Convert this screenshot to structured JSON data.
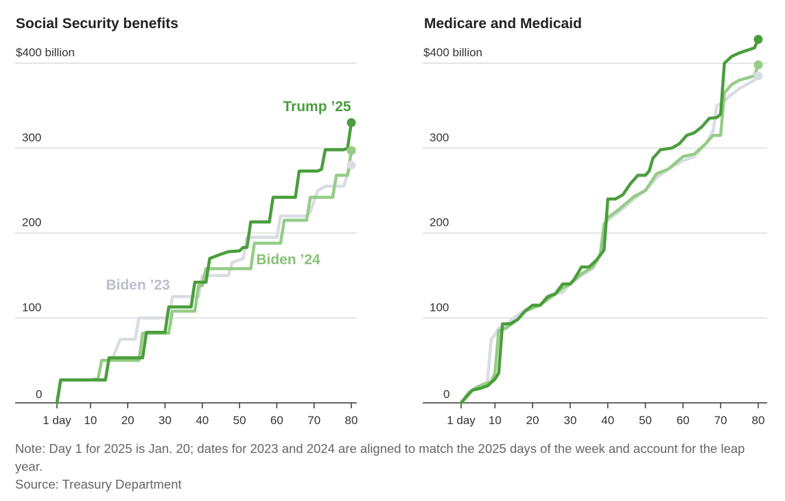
{
  "chart_data": [
    {
      "type": "line",
      "title": "Social Security benefits",
      "y_unit_label": "$400 billion",
      "x_ticks": [
        1,
        10,
        20,
        30,
        40,
        50,
        60,
        70,
        80
      ],
      "x_tick_labels": [
        "1 day",
        "10",
        "20",
        "30",
        "40",
        "50",
        "60",
        "70",
        "80"
      ],
      "y_ticks": [
        0,
        100,
        200,
        300,
        400
      ],
      "y_tick_labels": [
        "0",
        "100",
        "200",
        "300",
        "$400 billion"
      ],
      "xlim": [
        -3,
        81
      ],
      "ylim": [
        0,
        400
      ],
      "grid": true,
      "series": [
        {
          "name": "Biden ’23",
          "color": "#d9dde3",
          "label_color": "#b9bfcc",
          "points": [
            [
              1,
              0
            ],
            [
              2,
              27
            ],
            [
              11,
              27
            ],
            [
              12,
              27
            ],
            [
              14,
              27
            ],
            [
              15,
              53
            ],
            [
              16,
              53
            ],
            [
              18,
              75
            ],
            [
              22,
              75
            ],
            [
              23,
              100
            ],
            [
              31,
              100
            ],
            [
              32,
              125
            ],
            [
              39,
              125
            ],
            [
              40,
              150
            ],
            [
              47,
              150
            ],
            [
              48,
              165
            ],
            [
              51,
              170
            ],
            [
              52,
              195
            ],
            [
              60,
              195
            ],
            [
              61,
              220
            ],
            [
              68,
              220
            ],
            [
              69,
              225
            ],
            [
              71,
              250
            ],
            [
              73,
              255
            ],
            [
              78,
              255
            ],
            [
              79,
              270
            ],
            [
              80,
              280
            ]
          ]
        },
        {
          "name": "Biden ’24",
          "color": "#95cc86",
          "label_color": "#86c377",
          "points": [
            [
              1,
              0
            ],
            [
              2,
              27
            ],
            [
              10,
              27
            ],
            [
              11,
              28
            ],
            [
              12,
              28
            ],
            [
              13,
              50
            ],
            [
              23,
              50
            ],
            [
              24,
              82
            ],
            [
              31,
              82
            ],
            [
              32,
              108
            ],
            [
              38,
              108
            ],
            [
              39,
              138
            ],
            [
              40,
              138
            ],
            [
              41,
              158
            ],
            [
              53,
              158
            ],
            [
              54,
              188
            ],
            [
              61,
              188
            ],
            [
              62,
              215
            ],
            [
              68,
              215
            ],
            [
              69,
              242
            ],
            [
              75,
              242
            ],
            [
              76,
              268
            ],
            [
              79,
              268
            ],
            [
              80,
              297
            ]
          ]
        },
        {
          "name": "Trump ’25",
          "color": "#4a9e3c",
          "label_color": "#4a9e3c",
          "points": [
            [
              1,
              0
            ],
            [
              2,
              27
            ],
            [
              14,
              27
            ],
            [
              15,
              53
            ],
            [
              24,
              53
            ],
            [
              25,
              83
            ],
            [
              30,
              83
            ],
            [
              31,
              113
            ],
            [
              37,
              113
            ],
            [
              38,
              142
            ],
            [
              41,
              142
            ],
            [
              42,
              170
            ],
            [
              45,
              175
            ],
            [
              47,
              178
            ],
            [
              50,
              179
            ],
            [
              51,
              183
            ],
            [
              52,
              183
            ],
            [
              53,
              213
            ],
            [
              58,
              213
            ],
            [
              59,
              242
            ],
            [
              65,
              242
            ],
            [
              66,
              273
            ],
            [
              71,
              273
            ],
            [
              72,
              275
            ],
            [
              73,
              298
            ],
            [
              78,
              298
            ],
            [
              79,
              300
            ],
            [
              80,
              330
            ]
          ]
        }
      ],
      "labels": [
        {
          "series": "Trump ’25",
          "text": "Trump ’25"
        },
        {
          "series": "Biden ’24",
          "text": "Biden ’24"
        },
        {
          "series": "Biden ’23",
          "text": "Biden ’23"
        }
      ]
    },
    {
      "type": "line",
      "title": "Medicare and Medicaid",
      "y_unit_label": "$400 billion",
      "x_ticks": [
        1,
        10,
        20,
        30,
        40,
        50,
        60,
        70,
        80
      ],
      "x_tick_labels": [
        "1 day",
        "10",
        "20",
        "30",
        "40",
        "50",
        "60",
        "70",
        "80"
      ],
      "y_ticks": [
        0,
        100,
        200,
        300,
        400
      ],
      "y_tick_labels": [
        "0",
        "100",
        "200",
        "300",
        "$400 billion"
      ],
      "xlim": [
        -3,
        81
      ],
      "ylim": [
        0,
        400
      ],
      "grid": true,
      "series": [
        {
          "name": "Biden ’23",
          "color": "#d9dde3",
          "points": [
            [
              1,
              0
            ],
            [
              3,
              10
            ],
            [
              5,
              18
            ],
            [
              7,
              20
            ],
            [
              8,
              25
            ],
            [
              9,
              75
            ],
            [
              10,
              80
            ],
            [
              11,
              88
            ],
            [
              13,
              92
            ],
            [
              15,
              100
            ],
            [
              18,
              110
            ],
            [
              22,
              115
            ],
            [
              25,
              128
            ],
            [
              28,
              130
            ],
            [
              30,
              140
            ],
            [
              33,
              150
            ],
            [
              36,
              158
            ],
            [
              38,
              175
            ],
            [
              39,
              208
            ],
            [
              40,
              215
            ],
            [
              43,
              225
            ],
            [
              47,
              240
            ],
            [
              50,
              250
            ],
            [
              53,
              265
            ],
            [
              56,
              275
            ],
            [
              60,
              285
            ],
            [
              63,
              290
            ],
            [
              66,
              305
            ],
            [
              68,
              320
            ],
            [
              69,
              350
            ],
            [
              71,
              355
            ],
            [
              72,
              360
            ],
            [
              75,
              370
            ],
            [
              79,
              380
            ],
            [
              80,
              385
            ]
          ]
        },
        {
          "name": "Biden ’24",
          "color": "#95cc86",
          "points": [
            [
              1,
              0
            ],
            [
              3,
              12
            ],
            [
              5,
              18
            ],
            [
              7,
              22
            ],
            [
              9,
              25
            ],
            [
              10,
              35
            ],
            [
              11,
              85
            ],
            [
              13,
              88
            ],
            [
              16,
              98
            ],
            [
              18,
              108
            ],
            [
              22,
              115
            ],
            [
              25,
              125
            ],
            [
              28,
              135
            ],
            [
              30,
              140
            ],
            [
              33,
              152
            ],
            [
              36,
              160
            ],
            [
              38,
              175
            ],
            [
              39,
              210
            ],
            [
              40,
              218
            ],
            [
              43,
              228
            ],
            [
              47,
              243
            ],
            [
              50,
              250
            ],
            [
              53,
              270
            ],
            [
              56,
              275
            ],
            [
              60,
              290
            ],
            [
              63,
              293
            ],
            [
              66,
              305
            ],
            [
              68,
              315
            ],
            [
              70,
              315
            ],
            [
              71,
              365
            ],
            [
              73,
              375
            ],
            [
              75,
              380
            ],
            [
              79,
              385
            ],
            [
              80,
              398
            ]
          ]
        },
        {
          "name": "Trump ’25",
          "color": "#4a9e3c",
          "points": [
            [
              1,
              0
            ],
            [
              2,
              5
            ],
            [
              4,
              15
            ],
            [
              6,
              17
            ],
            [
              8,
              20
            ],
            [
              10,
              28
            ],
            [
              11,
              35
            ],
            [
              12,
              93
            ],
            [
              14,
              93
            ],
            [
              16,
              98
            ],
            [
              18,
              108
            ],
            [
              20,
              115
            ],
            [
              22,
              115
            ],
            [
              24,
              125
            ],
            [
              26,
              128
            ],
            [
              28,
              140
            ],
            [
              30,
              140
            ],
            [
              31,
              145
            ],
            [
              33,
              160
            ],
            [
              35,
              160
            ],
            [
              37,
              168
            ],
            [
              39,
              180
            ],
            [
              40,
              240
            ],
            [
              42,
              240
            ],
            [
              44,
              245
            ],
            [
              46,
              258
            ],
            [
              48,
              268
            ],
            [
              50,
              268
            ],
            [
              51,
              273
            ],
            [
              52,
              288
            ],
            [
              54,
              298
            ],
            [
              57,
              300
            ],
            [
              59,
              305
            ],
            [
              61,
              315
            ],
            [
              63,
              318
            ],
            [
              65,
              325
            ],
            [
              67,
              335
            ],
            [
              69,
              336
            ],
            [
              70,
              340
            ],
            [
              71,
              400
            ],
            [
              73,
              408
            ],
            [
              75,
              412
            ],
            [
              77,
              415
            ],
            [
              79,
              418
            ],
            [
              80,
              428
            ]
          ]
        }
      ],
      "labels": []
    }
  ],
  "note": "Note: Day 1 for 2025 is Jan. 20; dates for 2023 and 2024 are aligned to match the 2025 days of the week and account for the leap year.",
  "source": "Source: Treasury Department"
}
